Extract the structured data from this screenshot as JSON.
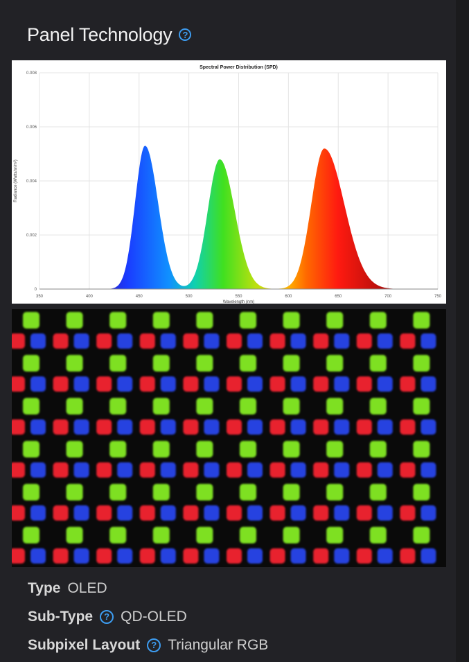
{
  "section": {
    "title": "Panel Technology",
    "help_icon": "question-circle-icon"
  },
  "chart_data": {
    "type": "area",
    "title": "Spectral Power Distribution (SPD)",
    "xlabel": "Wavelength (nm)",
    "ylabel": "Radiance (Watts/sr/m²)",
    "xlim": [
      350,
      750
    ],
    "ylim": [
      0,
      0.008
    ],
    "x_ticks": [
      "350",
      "400",
      "450",
      "500",
      "550",
      "600",
      "650",
      "700",
      "750"
    ],
    "y_ticks": [
      "0",
      "0.002",
      "0.004",
      "0.006",
      "0.008"
    ],
    "grid": true,
    "peaks": [
      {
        "color": "#2060ff",
        "center": 456,
        "height": 0.0053
      },
      {
        "color": "#30e020",
        "center": 531,
        "height": 0.0048
      },
      {
        "color": "#ff2010",
        "center": 636,
        "height": 0.0052
      }
    ]
  },
  "subpixel_image": {
    "description_icon": "subpixel-micrograph",
    "colors": {
      "red": "#e8202e",
      "green": "#7ee020",
      "blue": "#2642e0"
    }
  },
  "specs": [
    {
      "label": "Type",
      "value": "OLED",
      "help": false
    },
    {
      "label": "Sub-Type",
      "value": "QD-OLED",
      "help": true
    },
    {
      "label": "Subpixel Layout",
      "value": "Triangular RGB",
      "help": true
    }
  ]
}
